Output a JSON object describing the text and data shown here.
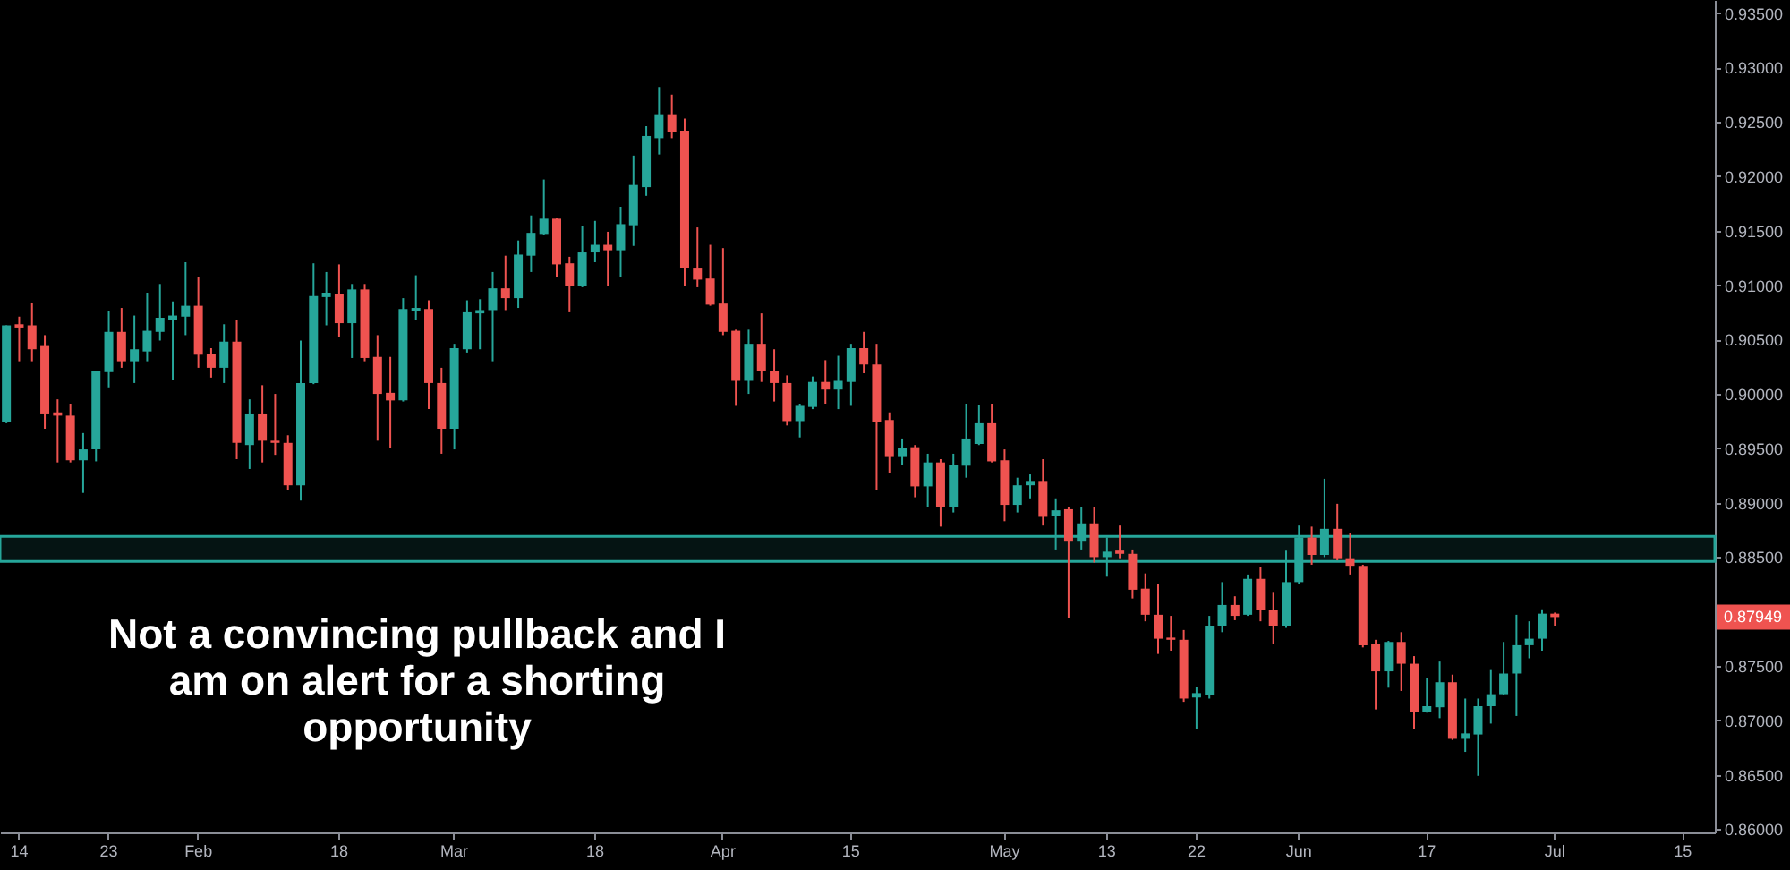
{
  "chart_data": {
    "type": "candlestick",
    "categories": [
      null,
      "14",
      null,
      null,
      null,
      null,
      null,
      null,
      "23",
      null,
      null,
      null,
      null,
      null,
      null,
      "Feb",
      null,
      null,
      null,
      null,
      null,
      null,
      null,
      null,
      null,
      null,
      "18",
      null,
      null,
      null,
      null,
      null,
      null,
      null,
      null,
      "Mar",
      null,
      null,
      null,
      null,
      null,
      null,
      null,
      null,
      null,
      null,
      "18",
      null,
      null,
      null,
      null,
      null,
      null,
      null,
      null,
      null,
      "Apr",
      null,
      null,
      null,
      null,
      null,
      null,
      null,
      null,
      null,
      "15",
      null,
      null,
      null,
      null,
      null,
      null,
      null,
      null,
      null,
      null,
      null,
      "May",
      null,
      null,
      null,
      null,
      null,
      null,
      null,
      "13",
      null,
      null,
      null,
      null,
      null,
      null,
      "22",
      null,
      null,
      null,
      null,
      null,
      null,
      null,
      "Jun",
      null,
      null,
      null,
      null,
      null,
      null,
      null,
      null,
      null,
      "17",
      null,
      null,
      null,
      null,
      null,
      null,
      null,
      null,
      null,
      "Jul",
      null,
      null,
      null,
      null,
      null,
      null,
      null,
      null,
      null,
      "15",
      null,
      null
    ],
    "ohlc": [
      [
        0.8974,
        0.9063,
        0.8973,
        0.9063
      ],
      [
        0.9064,
        0.9071,
        0.903,
        0.9061
      ],
      [
        0.9063,
        0.9084,
        0.903,
        0.9041
      ],
      [
        0.9044,
        0.9054,
        0.8968,
        0.8982
      ],
      [
        0.8983,
        0.8995,
        0.8937,
        0.898
      ],
      [
        0.898,
        0.8991,
        0.8937,
        0.8939
      ],
      [
        0.8939,
        0.8964,
        0.8909,
        0.8949
      ],
      [
        0.8949,
        0.9021,
        0.8938,
        0.9021
      ],
      [
        0.902,
        0.9076,
        0.9006,
        0.9057
      ],
      [
        0.9057,
        0.9079,
        0.9024,
        0.903
      ],
      [
        0.903,
        0.9072,
        0.901,
        0.9041
      ],
      [
        0.9039,
        0.9093,
        0.903,
        0.9058
      ],
      [
        0.9057,
        0.9101,
        0.9049,
        0.907
      ],
      [
        0.9068,
        0.9085,
        0.9013,
        0.9072
      ],
      [
        0.9071,
        0.9121,
        0.9054,
        0.9081
      ],
      [
        0.9081,
        0.9107,
        0.9024,
        0.9036
      ],
      [
        0.9037,
        0.9042,
        0.9015,
        0.9024
      ],
      [
        0.9024,
        0.9064,
        0.901,
        0.9048
      ],
      [
        0.9048,
        0.9068,
        0.894,
        0.8955
      ],
      [
        0.8953,
        0.8995,
        0.8931,
        0.8982
      ],
      [
        0.8982,
        0.9008,
        0.8937,
        0.8957
      ],
      [
        0.8957,
        0.9,
        0.8944,
        0.8955
      ],
      [
        0.8955,
        0.8962,
        0.8912,
        0.8916
      ],
      [
        0.8916,
        0.9049,
        0.8902,
        0.901
      ],
      [
        0.901,
        0.912,
        0.9009,
        0.909
      ],
      [
        0.9089,
        0.9112,
        0.9063,
        0.9093
      ],
      [
        0.9092,
        0.9119,
        0.9052,
        0.9065
      ],
      [
        0.9065,
        0.9101,
        0.9033,
        0.9096
      ],
      [
        0.9096,
        0.9101,
        0.903,
        0.9033
      ],
      [
        0.9034,
        0.9054,
        0.8957,
        0.9
      ],
      [
        0.9001,
        0.9034,
        0.895,
        0.8994
      ],
      [
        0.8994,
        0.9088,
        0.8993,
        0.9078
      ],
      [
        0.9076,
        0.9109,
        0.9068,
        0.9079
      ],
      [
        0.9078,
        0.9086,
        0.8986,
        0.901
      ],
      [
        0.901,
        0.9024,
        0.8945,
        0.8968
      ],
      [
        0.8968,
        0.9046,
        0.8949,
        0.9042
      ],
      [
        0.9041,
        0.9086,
        0.9038,
        0.9075
      ],
      [
        0.9074,
        0.9087,
        0.9041,
        0.9077
      ],
      [
        0.9077,
        0.9112,
        0.903,
        0.9097
      ],
      [
        0.9097,
        0.9127,
        0.9077,
        0.9088
      ],
      [
        0.9088,
        0.9141,
        0.9079,
        0.9128
      ],
      [
        0.9127,
        0.9164,
        0.9112,
        0.9148
      ],
      [
        0.9147,
        0.9197,
        0.9146,
        0.9161
      ],
      [
        0.9161,
        0.9162,
        0.9107,
        0.9119
      ],
      [
        0.912,
        0.9126,
        0.9075,
        0.9099
      ],
      [
        0.9099,
        0.9154,
        0.9098,
        0.913
      ],
      [
        0.913,
        0.9159,
        0.9121,
        0.9137
      ],
      [
        0.9137,
        0.9149,
        0.9099,
        0.9132
      ],
      [
        0.9132,
        0.9172,
        0.9107,
        0.9156
      ],
      [
        0.9155,
        0.9219,
        0.9136,
        0.9192
      ],
      [
        0.919,
        0.9246,
        0.9182,
        0.9237
      ],
      [
        0.9235,
        0.9282,
        0.922,
        0.9257
      ],
      [
        0.9257,
        0.9275,
        0.9235,
        0.9241
      ],
      [
        0.9242,
        0.9253,
        0.9099,
        0.9116
      ],
      [
        0.9116,
        0.9153,
        0.9098,
        0.9105
      ],
      [
        0.9106,
        0.9137,
        0.9081,
        0.9082
      ],
      [
        0.9083,
        0.9134,
        0.9054,
        0.9057
      ],
      [
        0.9058,
        0.9059,
        0.8989,
        0.9012
      ],
      [
        0.9012,
        0.9059,
        0.9,
        0.9046
      ],
      [
        0.9046,
        0.9074,
        0.9011,
        0.9021
      ],
      [
        0.9021,
        0.9041,
        0.8993,
        0.901
      ],
      [
        0.901,
        0.9017,
        0.8971,
        0.8975
      ],
      [
        0.8975,
        0.8991,
        0.896,
        0.8989
      ],
      [
        0.8988,
        0.9016,
        0.8986,
        0.9011
      ],
      [
        0.9011,
        0.9031,
        0.8991,
        0.9004
      ],
      [
        0.9004,
        0.9035,
        0.8986,
        0.9012
      ],
      [
        0.9011,
        0.9046,
        0.8989,
        0.9042
      ],
      [
        0.9042,
        0.9057,
        0.9019,
        0.9027
      ],
      [
        0.9027,
        0.9046,
        0.8912,
        0.8974
      ],
      [
        0.8976,
        0.8983,
        0.8927,
        0.8942
      ],
      [
        0.8942,
        0.8959,
        0.8935,
        0.895
      ],
      [
        0.8951,
        0.8953,
        0.8905,
        0.8915
      ],
      [
        0.8915,
        0.8945,
        0.8896,
        0.8937
      ],
      [
        0.8937,
        0.894,
        0.8878,
        0.8896
      ],
      [
        0.8896,
        0.8945,
        0.8891,
        0.8935
      ],
      [
        0.8934,
        0.8991,
        0.8923,
        0.8959
      ],
      [
        0.8954,
        0.899,
        0.8953,
        0.8973
      ],
      [
        0.8973,
        0.8991,
        0.8937,
        0.8938
      ],
      [
        0.8939,
        0.8949,
        0.8883,
        0.8898
      ],
      [
        0.8898,
        0.8923,
        0.8891,
        0.8916
      ],
      [
        0.8916,
        0.8926,
        0.8904,
        0.892
      ],
      [
        0.892,
        0.894,
        0.8879,
        0.8887
      ],
      [
        0.8888,
        0.8904,
        0.8857,
        0.8893
      ],
      [
        0.8894,
        0.8896,
        0.8794,
        0.8865
      ],
      [
        0.8865,
        0.8896,
        0.8857,
        0.8881
      ],
      [
        0.8881,
        0.8896,
        0.8845,
        0.885
      ],
      [
        0.885,
        0.8868,
        0.8832,
        0.8855
      ],
      [
        0.8856,
        0.8879,
        0.8849,
        0.8853
      ],
      [
        0.8853,
        0.8857,
        0.8812,
        0.882
      ],
      [
        0.8821,
        0.8835,
        0.8791,
        0.8797
      ],
      [
        0.8797,
        0.8825,
        0.8761,
        0.8775
      ],
      [
        0.8776,
        0.8796,
        0.8764,
        0.8774
      ],
      [
        0.8774,
        0.8783,
        0.8717,
        0.872
      ],
      [
        0.8721,
        0.8731,
        0.8692,
        0.8725
      ],
      [
        0.8723,
        0.8796,
        0.872,
        0.8787
      ],
      [
        0.8787,
        0.8827,
        0.8781,
        0.8806
      ],
      [
        0.8806,
        0.8814,
        0.8792,
        0.8796
      ],
      [
        0.8797,
        0.8834,
        0.8796,
        0.883
      ],
      [
        0.883,
        0.8841,
        0.8791,
        0.8801
      ],
      [
        0.8801,
        0.8818,
        0.877,
        0.8787
      ],
      [
        0.8787,
        0.8856,
        0.8785,
        0.8827
      ],
      [
        0.8827,
        0.8879,
        0.8825,
        0.8868
      ],
      [
        0.8868,
        0.8878,
        0.8843,
        0.8852
      ],
      [
        0.8852,
        0.8922,
        0.885,
        0.8876
      ],
      [
        0.8876,
        0.8899,
        0.8847,
        0.8849
      ],
      [
        0.8849,
        0.8872,
        0.8834,
        0.8842
      ],
      [
        0.8842,
        0.8843,
        0.8767,
        0.8769
      ],
      [
        0.877,
        0.8774,
        0.871,
        0.8745
      ],
      [
        0.8745,
        0.8773,
        0.873,
        0.8772
      ],
      [
        0.8772,
        0.8781,
        0.8727,
        0.8752
      ],
      [
        0.8752,
        0.8759,
        0.8692,
        0.8708
      ],
      [
        0.8708,
        0.8739,
        0.8707,
        0.8713
      ],
      [
        0.8712,
        0.8754,
        0.8702,
        0.8735
      ],
      [
        0.8735,
        0.8742,
        0.8682,
        0.8683
      ],
      [
        0.8683,
        0.872,
        0.8671,
        0.8688
      ],
      [
        0.8687,
        0.872,
        0.8649,
        0.8713
      ],
      [
        0.8713,
        0.8747,
        0.8697,
        0.8724
      ],
      [
        0.8724,
        0.8772,
        0.8723,
        0.8743
      ],
      [
        0.8743,
        0.8797,
        0.8704,
        0.8769
      ],
      [
        0.8769,
        0.8791,
        0.8757,
        0.8775
      ],
      [
        0.8775,
        0.8802,
        0.8764,
        0.8798
      ],
      [
        0.8798,
        0.8799,
        0.8787,
        0.87949
      ],
      null,
      null,
      null,
      null,
      null,
      null,
      null,
      null,
      null,
      null,
      null,
      null
    ],
    "colors": [
      "#26a69a",
      "#ef5350",
      "#ef5350",
      "#ef5350",
      "#ef5350",
      "#ef5350",
      "#26a69a",
      "#26a69a",
      "#26a69a",
      "#ef5350",
      "#26a69a",
      "#26a69a",
      "#26a69a",
      "#26a69a",
      "#26a69a",
      "#ef5350",
      "#ef5350",
      "#26a69a",
      "#ef5350",
      "#26a69a",
      "#ef5350",
      "#ef5350",
      "#ef5350",
      "#26a69a",
      "#26a69a",
      "#26a69a",
      "#ef5350",
      "#26a69a",
      "#ef5350",
      "#ef5350",
      "#ef5350",
      "#26a69a",
      "#26a69a",
      "#ef5350",
      "#ef5350",
      "#26a69a",
      "#26a69a",
      "#26a69a",
      "#26a69a",
      "#ef5350",
      "#26a69a",
      "#26a69a",
      "#26a69a",
      "#ef5350",
      "#ef5350",
      "#26a69a",
      "#26a69a",
      "#ef5350",
      "#26a69a",
      "#26a69a",
      "#26a69a",
      "#26a69a",
      "#ef5350",
      "#ef5350",
      "#ef5350",
      "#ef5350",
      "#ef5350",
      "#ef5350",
      "#26a69a",
      "#ef5350",
      "#ef5350",
      "#ef5350",
      "#26a69a",
      "#26a69a",
      "#ef5350",
      "#26a69a",
      "#26a69a",
      "#ef5350",
      "#ef5350",
      "#ef5350",
      "#26a69a",
      "#ef5350",
      "#26a69a",
      "#ef5350",
      "#26a69a",
      "#26a69a",
      "#26a69a",
      "#ef5350",
      "#ef5350",
      "#26a69a",
      "#26a69a",
      "#ef5350",
      "#26a69a",
      "#ef5350",
      "#26a69a",
      "#ef5350",
      "#26a69a",
      "#ef5350",
      "#ef5350",
      "#ef5350",
      "#ef5350",
      "#ef5350",
      "#ef5350",
      "#26a69a",
      "#26a69a",
      "#26a69a",
      "#ef5350",
      "#26a69a",
      "#ef5350",
      "#ef5350",
      "#26a69a",
      "#26a69a",
      "#ef5350",
      "#26a69a",
      "#ef5350",
      "#ef5350",
      "#ef5350",
      "#ef5350",
      "#26a69a",
      "#ef5350",
      "#ef5350",
      "#26a69a",
      "#26a69a",
      "#ef5350",
      "#26a69a",
      "#26a69a",
      "#26a69a",
      "#26a69a",
      "#26a69a",
      "#26a69a",
      "#26a69a",
      "#ef5350",
      null,
      null,
      null,
      null,
      null,
      null,
      null,
      null,
      null,
      null,
      null,
      null
    ],
    "ylim": [
      0.8597,
      0.9362
    ],
    "yticks": [
      {
        "value": 0.935,
        "label": "0.93500"
      },
      {
        "value": 0.93,
        "label": "0.93000"
      },
      {
        "value": 0.925,
        "label": "0.92500"
      },
      {
        "value": 0.92,
        "label": "0.92000"
      },
      {
        "value": 0.915,
        "label": "0.91500"
      },
      {
        "value": 0.91,
        "label": "0.91000"
      },
      {
        "value": 0.905,
        "label": "0.90500"
      },
      {
        "value": 0.9,
        "label": "0.90000"
      },
      {
        "value": 0.895,
        "label": "0.89500"
      },
      {
        "value": 0.89,
        "label": "0.89000"
      },
      {
        "value": 0.885,
        "label": "0.88500"
      },
      {
        "value": 0.875,
        "label": "0.87500"
      },
      {
        "value": 0.87,
        "label": "0.87000"
      },
      {
        "value": 0.865,
        "label": "0.86500"
      },
      {
        "value": 0.86,
        "label": "0.86000"
      }
    ],
    "bands": [
      {
        "axis": "y",
        "from": 0.8846,
        "to": 0.8869,
        "color": "#26a69a"
      }
    ],
    "annotations": [
      "0.87949",
      "Not a convincing pullback and I am on alert for a shorting opportunity"
    ]
  }
}
